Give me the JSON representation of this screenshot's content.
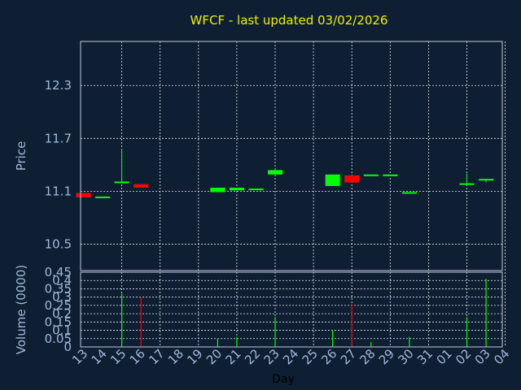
{
  "chart_data": [
    {
      "type": "candlestick",
      "title": "WFCF - last updated 03/02/2026",
      "ylabel": "Price",
      "ylim": [
        10.2,
        12.8
      ],
      "yticks": [
        "10.5",
        "11.1",
        "11.7",
        "12.3"
      ],
      "grid": true,
      "up_color": "#00ff00",
      "down_color": "#ff0000",
      "candles": [
        {
          "x": "13",
          "open": 11.08,
          "close": 11.03,
          "high": 11.08,
          "low": 11.03
        },
        {
          "x": "14",
          "open": 11.04,
          "close": 11.04,
          "high": 11.04,
          "low": 11.04
        },
        {
          "x": "15",
          "open": 11.21,
          "close": 11.21,
          "high": 11.58,
          "low": 11.21
        },
        {
          "x": "16",
          "open": 11.18,
          "close": 11.14,
          "high": 11.18,
          "low": 11.14
        },
        {
          "x": "20",
          "open": 11.09,
          "close": 11.14,
          "high": 11.14,
          "low": 11.09
        },
        {
          "x": "21",
          "open": 11.11,
          "close": 11.14,
          "high": 11.14,
          "low": 11.11
        },
        {
          "x": "22",
          "open": 11.13,
          "close": 11.13,
          "high": 11.13,
          "low": 11.13
        },
        {
          "x": "23",
          "open": 11.29,
          "close": 11.34,
          "high": 11.34,
          "low": 11.29
        },
        {
          "x": "26",
          "open": 11.16,
          "close": 11.29,
          "high": 11.29,
          "low": 11.16
        },
        {
          "x": "27",
          "open": 11.28,
          "close": 11.2,
          "high": 11.28,
          "low": 11.2
        },
        {
          "x": "28",
          "open": 11.29,
          "close": 11.29,
          "high": 11.29,
          "low": 11.29
        },
        {
          "x": "29",
          "open": 11.29,
          "close": 11.29,
          "high": 11.29,
          "low": 11.29
        },
        {
          "x": "30",
          "open": 11.09,
          "close": 11.09,
          "high": 11.09,
          "low": 11.09
        },
        {
          "x": "02",
          "open": 11.19,
          "close": 11.19,
          "high": 11.3,
          "low": 11.19
        },
        {
          "x": "03",
          "open": 11.24,
          "close": 11.24,
          "high": 11.24,
          "low": 11.2
        }
      ]
    },
    {
      "type": "bar",
      "xlabel": "Day",
      "ylabel": "Volume (0000)",
      "ylim": [
        0,
        0.45
      ],
      "yticks": [
        "0",
        "0.05",
        "0.1",
        "0.15",
        "0.2",
        "0.25",
        "0.3",
        "0.35",
        "0.4",
        "0.45"
      ],
      "grid": true,
      "categories": [
        "13",
        "14",
        "15",
        "16",
        "17",
        "18",
        "19",
        "20",
        "21",
        "22",
        "23",
        "24",
        "25",
        "26",
        "27",
        "28",
        "29",
        "30",
        "31",
        "01",
        "02",
        "03",
        "04"
      ],
      "bars": [
        {
          "x": "15",
          "value": 0.32,
          "color": "#00ff00"
        },
        {
          "x": "16",
          "value": 0.3,
          "color": "#ff0000"
        },
        {
          "x": "20",
          "value": 0.05,
          "color": "#00ff00"
        },
        {
          "x": "21",
          "value": 0.06,
          "color": "#00ff00"
        },
        {
          "x": "23",
          "value": 0.18,
          "color": "#00ff00"
        },
        {
          "x": "26",
          "value": 0.1,
          "color": "#00ff00"
        },
        {
          "x": "27",
          "value": 0.26,
          "color": "#ff0000"
        },
        {
          "x": "28",
          "value": 0.03,
          "color": "#00ff00"
        },
        {
          "x": "30",
          "value": 0.06,
          "color": "#00ff00"
        },
        {
          "x": "02",
          "value": 0.18,
          "color": "#00ff00"
        },
        {
          "x": "03",
          "value": 0.41,
          "color": "#00ff00"
        }
      ]
    }
  ],
  "colors": {
    "background": "#0e1f33",
    "title": "#f0f000",
    "tick_text": "#a0b8d8",
    "frame": "#c0c8d8"
  }
}
